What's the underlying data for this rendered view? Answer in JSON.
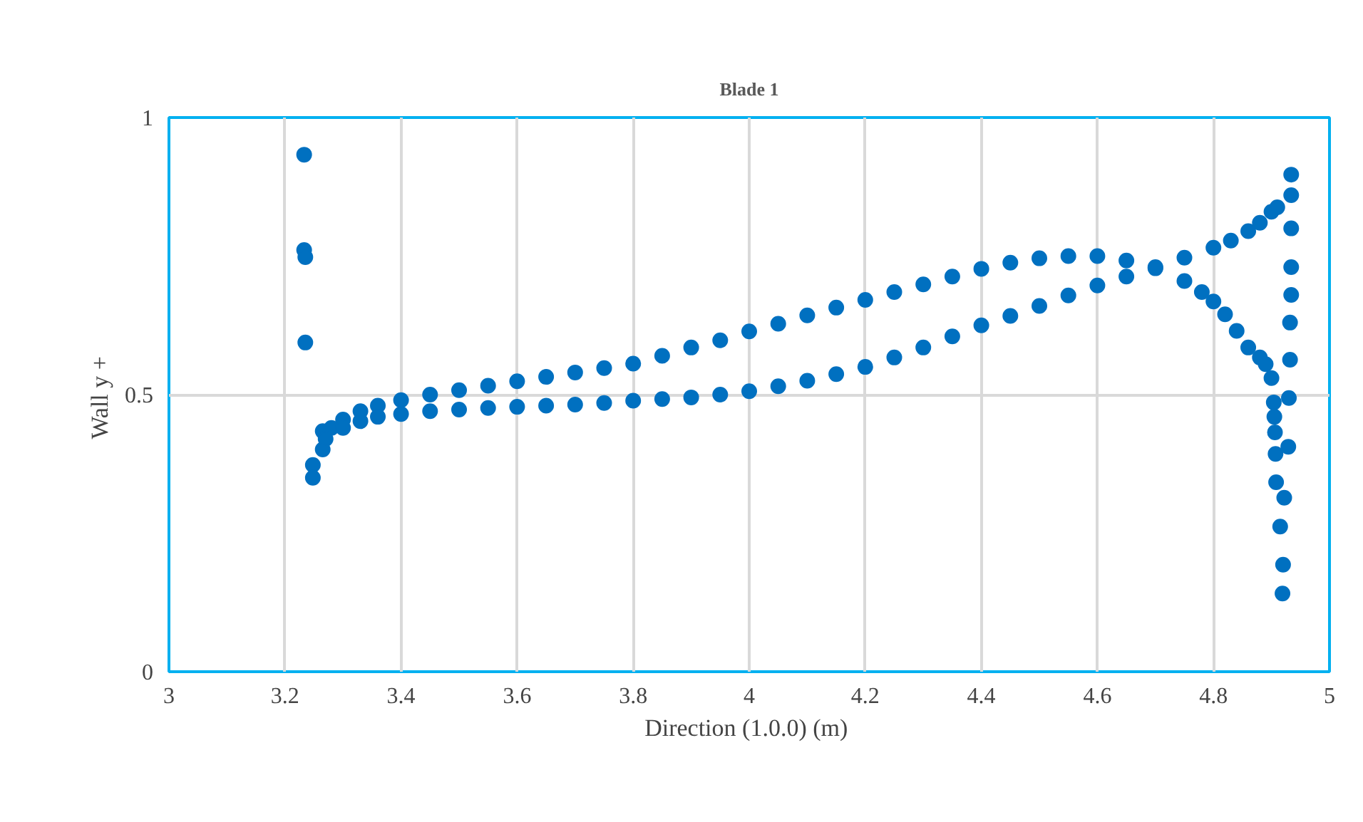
{
  "chart_data": {
    "type": "scatter",
    "title": "Blade 1",
    "xlabel": "Direction (1.0.0)  (m)",
    "ylabel": "Wall  y +",
    "xlim": [
      3,
      5
    ],
    "xticks": [
      3,
      3.2,
      3.4,
      3.6,
      3.8,
      4,
      4.2,
      4.4,
      4.6,
      4.8,
      5
    ],
    "ylim": [
      0,
      1
    ],
    "yticks": [
      0,
      0.5,
      1
    ],
    "grid": true,
    "marker": "circle",
    "series": [
      {
        "color": "#0070c0",
        "x": [
          3.233,
          3.233,
          3.235,
          3.235,
          3.265,
          3.265,
          3.248,
          3.248,
          3.28,
          3.3,
          3.33,
          3.36,
          3.4,
          3.45,
          3.5,
          3.55,
          3.6,
          3.65,
          3.7,
          3.75,
          3.8,
          3.85,
          3.9,
          3.95,
          4.0,
          4.05,
          4.1,
          4.15,
          4.2,
          4.25,
          4.3,
          4.35,
          4.4,
          4.45,
          4.5,
          4.55,
          4.6,
          4.65,
          4.7,
          4.75,
          4.78,
          4.8,
          4.82,
          4.84,
          4.86,
          4.88,
          4.89,
          4.9,
          3.27,
          3.3,
          3.33,
          3.36,
          3.4,
          3.45,
          3.5,
          3.55,
          3.6,
          3.65,
          3.7,
          3.75,
          3.8,
          3.85,
          3.9,
          3.95,
          4.0,
          4.05,
          4.1,
          4.15,
          4.2,
          4.25,
          4.3,
          4.35,
          4.4,
          4.45,
          4.5,
          4.55,
          4.6,
          4.65,
          4.7,
          4.75,
          4.8,
          4.83,
          4.86,
          4.88,
          4.9,
          4.91,
          4.934,
          4.934,
          4.934,
          4.934,
          4.934,
          4.932,
          4.932,
          4.904,
          4.905,
          4.906,
          4.907,
          4.908,
          4.93,
          4.929,
          4.922,
          4.915,
          4.92,
          4.919
        ],
        "values": [
          0.933,
          0.761,
          0.748,
          0.594,
          0.434,
          0.401,
          0.373,
          0.35,
          0.44,
          0.455,
          0.47,
          0.48,
          0.49,
          0.5,
          0.508,
          0.516,
          0.524,
          0.532,
          0.54,
          0.548,
          0.556,
          0.57,
          0.585,
          0.598,
          0.614,
          0.628,
          0.643,
          0.657,
          0.671,
          0.685,
          0.699,
          0.713,
          0.727,
          0.738,
          0.746,
          0.75,
          0.75,
          0.742,
          0.728,
          0.705,
          0.685,
          0.668,
          0.645,
          0.615,
          0.585,
          0.567,
          0.555,
          0.53,
          0.42,
          0.44,
          0.452,
          0.46,
          0.465,
          0.47,
          0.473,
          0.476,
          0.478,
          0.48,
          0.482,
          0.485,
          0.489,
          0.492,
          0.495,
          0.5,
          0.506,
          0.515,
          0.525,
          0.537,
          0.55,
          0.567,
          0.585,
          0.605,
          0.625,
          0.642,
          0.66,
          0.679,
          0.697,
          0.713,
          0.73,
          0.747,
          0.765,
          0.778,
          0.795,
          0.81,
          0.83,
          0.838,
          0.897,
          0.86,
          0.8,
          0.73,
          0.68,
          0.63,
          0.563,
          0.486,
          0.46,
          0.432,
          0.393,
          0.342,
          0.494,
          0.406,
          0.314,
          0.262,
          0.193,
          0.141
        ]
      }
    ]
  }
}
